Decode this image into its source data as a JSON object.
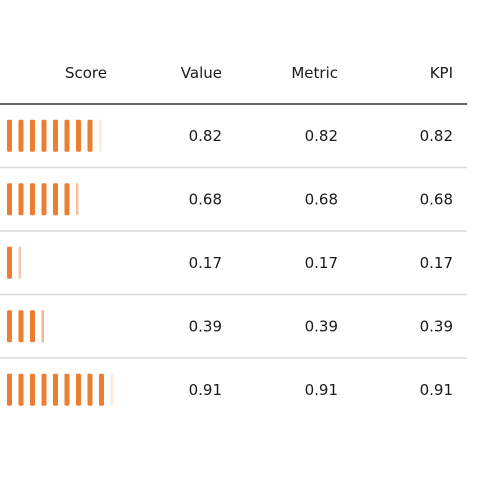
{
  "chart_data": {
    "type": "table",
    "columns": [
      "Score",
      "Value",
      "Metric",
      "KPI"
    ],
    "rows": [
      {
        "score": 0.82,
        "value": "0.82",
        "metric": "0.82",
        "kpi": "0.82"
      },
      {
        "score": 0.68,
        "value": "0.68",
        "metric": "0.68",
        "kpi": "0.68"
      },
      {
        "score": 0.17,
        "value": "0.17",
        "metric": "0.17",
        "kpi": "0.17"
      },
      {
        "score": 0.39,
        "value": "0.39",
        "metric": "0.39",
        "kpi": "0.39"
      },
      {
        "score": 0.91,
        "value": "0.91",
        "metric": "0.91",
        "kpi": "0.91"
      }
    ],
    "score_bar_color": "#ed7d31",
    "header_rule_color": "#333333",
    "row_rule_color": "#d9d9d9"
  }
}
